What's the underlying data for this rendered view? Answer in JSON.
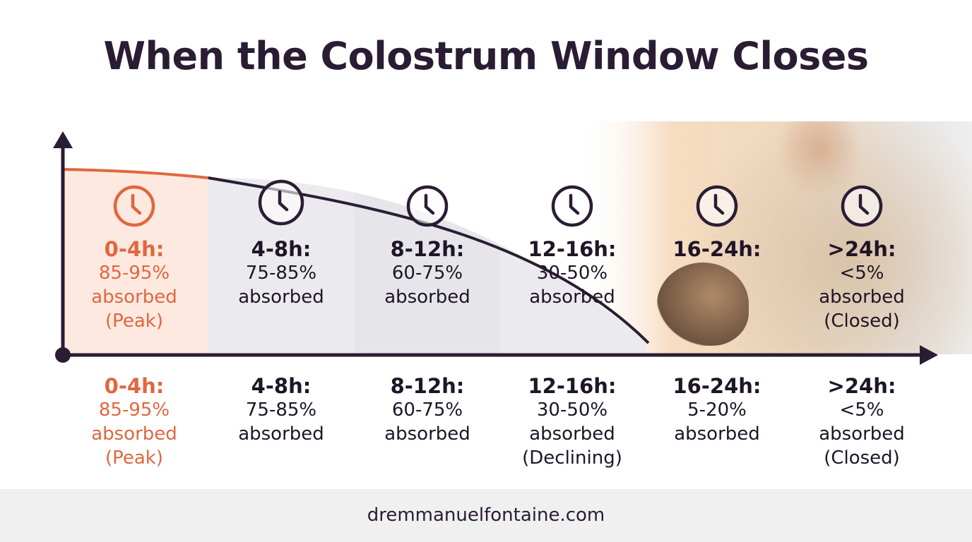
{
  "title": "When the Colostrum Window Closes",
  "colors": {
    "accent": "#e0673f",
    "dark": "#2a1d33"
  },
  "chart_data": {
    "type": "area",
    "title": "When the Colostrum Window Closes",
    "categories": [
      "0-4h",
      "4-8h",
      "8-12h",
      "12-16h",
      "16-24h",
      ">24h"
    ],
    "absorption_ranges": [
      "85-95%",
      "75-85%",
      "60-75%",
      "30-50%",
      "5-20%",
      "<5%"
    ]
  },
  "upper_labels": [
    {
      "period": "0-4h:",
      "value": "85-95%",
      "unit": "absorbed",
      "note": "(Peak)"
    },
    {
      "period": "4-8h:",
      "value": "75-85%",
      "unit": "absorbed",
      "note": ""
    },
    {
      "period": "8-12h:",
      "value": "60-75%",
      "unit": "absorbed",
      "note": ""
    },
    {
      "period": "12-16h:",
      "value": "30-50%",
      "unit": "absorbed",
      "note": ""
    },
    {
      "period": "16-24h:",
      "value": "",
      "unit": "",
      "note": ""
    },
    {
      "period": ">24h:",
      "value": "<5%",
      "unit": "absorbed",
      "note": "(Closed)"
    }
  ],
  "lower_labels": [
    {
      "period": "0-4h:",
      "value": "85-95%",
      "unit": "absorbed",
      "note": "(Peak)"
    },
    {
      "period": "4-8h:",
      "value": "75-85%",
      "unit": "absorbed",
      "note": ""
    },
    {
      "period": "8-12h:",
      "value": "60-75%",
      "unit": "absorbed",
      "note": ""
    },
    {
      "period": "12-16h:",
      "value": "30-50%",
      "unit": "absorbed",
      "note": "(Declining)"
    },
    {
      "period": "16-24h:",
      "value": "5-20%",
      "unit": "absorbed",
      "note": ""
    },
    {
      "period": ">24h:",
      "value": "<5%",
      "unit": "absorbed",
      "note": "(Closed)"
    }
  ],
  "icons": [
    "clock-icon"
  ],
  "footer": {
    "website": "dremmanuelfontaine.com"
  }
}
